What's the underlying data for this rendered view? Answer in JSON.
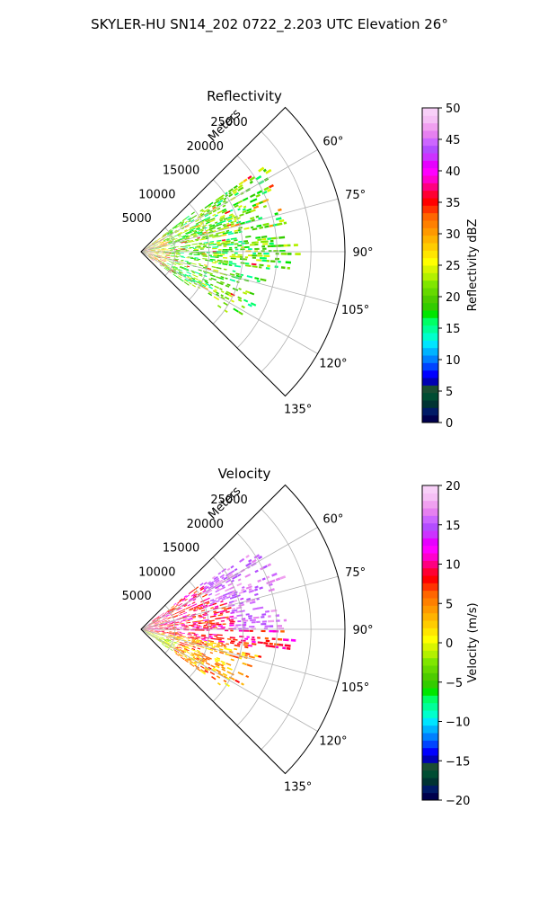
{
  "figure": {
    "suptitle": "SKYLER-HU  SN14_202  0722_2.203 UTC Elevation 26°"
  },
  "chart_data": [
    {
      "type": "polar-sector",
      "title": "Reflectivity",
      "radial_label": "Meters",
      "radial_ticks": [
        5000,
        10000,
        15000,
        20000,
        25000
      ],
      "radial_tick_labels": [
        "5000",
        "10000",
        "15000",
        "20000",
        "25000"
      ],
      "r_max": 30000,
      "theta_ticks": [
        60,
        75,
        90,
        105,
        120,
        135
      ],
      "theta_tick_labels": [
        "60°",
        "75°",
        "90°",
        "105°",
        "120°",
        "135°"
      ],
      "theta_range_deg": [
        45,
        135
      ],
      "data_extent_m": 20000,
      "dominant_range_dbz": [
        15,
        25
      ],
      "colorbar": {
        "label": "Reflectivity dBZ",
        "min": 0,
        "max": 50,
        "ticks": [
          0,
          5,
          10,
          15,
          20,
          25,
          30,
          35,
          40,
          45,
          50
        ],
        "tick_labels": [
          "0",
          "5",
          "10",
          "15",
          "20",
          "25",
          "30",
          "35",
          "40",
          "45",
          "50"
        ],
        "colors": [
          "#00004d",
          "#001a66",
          "#003333",
          "#004d33",
          "#1a4d33",
          "#0000b3",
          "#0000ff",
          "#0044ff",
          "#0080ff",
          "#00b3ff",
          "#00e5ff",
          "#00ffcc",
          "#00ff99",
          "#00ff66",
          "#00e600",
          "#33cc00",
          "#4dcc00",
          "#66d900",
          "#80e600",
          "#b3f000",
          "#d9f500",
          "#ffff00",
          "#ffe600",
          "#ffcc00",
          "#ffb300",
          "#ff9900",
          "#ff8000",
          "#ff6600",
          "#ff3300",
          "#ff0000",
          "#ff0033",
          "#ff0080",
          "#ff00cc",
          "#ff00ff",
          "#e600ff",
          "#cc33ff",
          "#b34dff",
          "#cc66ff",
          "#e680f0",
          "#f0a0f0",
          "#f5c0f5",
          "#f8d0f8"
        ]
      }
    },
    {
      "type": "polar-sector",
      "title": "Velocity",
      "radial_label": "Meters",
      "radial_ticks": [
        5000,
        10000,
        15000,
        20000,
        25000
      ],
      "radial_tick_labels": [
        "5000",
        "10000",
        "15000",
        "20000",
        "25000"
      ],
      "r_max": 30000,
      "theta_ticks": [
        60,
        75,
        90,
        105,
        120,
        135
      ],
      "theta_tick_labels": [
        "60°",
        "75°",
        "90°",
        "105°",
        "120°",
        "135°"
      ],
      "theta_range_deg": [
        45,
        135
      ],
      "data_extent_m": 20000,
      "dominant_range_ms": [
        0,
        15
      ],
      "colorbar": {
        "label": "Velocity (m/s)",
        "min": -20,
        "max": 20,
        "ticks": [
          -20,
          -15,
          -10,
          -5,
          0,
          5,
          10,
          15,
          20
        ],
        "tick_labels": [
          "−20",
          "−15",
          "−10",
          "−5",
          "0",
          "5",
          "10",
          "15",
          "20"
        ],
        "colors": [
          "#00004d",
          "#001a66",
          "#003333",
          "#004d33",
          "#1a4d33",
          "#0000b3",
          "#0000ff",
          "#0044ff",
          "#0080ff",
          "#00b3ff",
          "#00e5ff",
          "#00ffcc",
          "#00ff99",
          "#00ff66",
          "#00e600",
          "#33cc00",
          "#4dcc00",
          "#66d900",
          "#80e600",
          "#b3f000",
          "#d9f500",
          "#ffff00",
          "#ffe600",
          "#ffcc00",
          "#ffb300",
          "#ff9900",
          "#ff8000",
          "#ff6600",
          "#ff3300",
          "#ff0000",
          "#ff0033",
          "#ff0080",
          "#ff00cc",
          "#ff00ff",
          "#e600ff",
          "#cc33ff",
          "#b34dff",
          "#cc66ff",
          "#e680f0",
          "#f0a0f0",
          "#f5c0f5",
          "#f8d0f8"
        ]
      }
    }
  ]
}
